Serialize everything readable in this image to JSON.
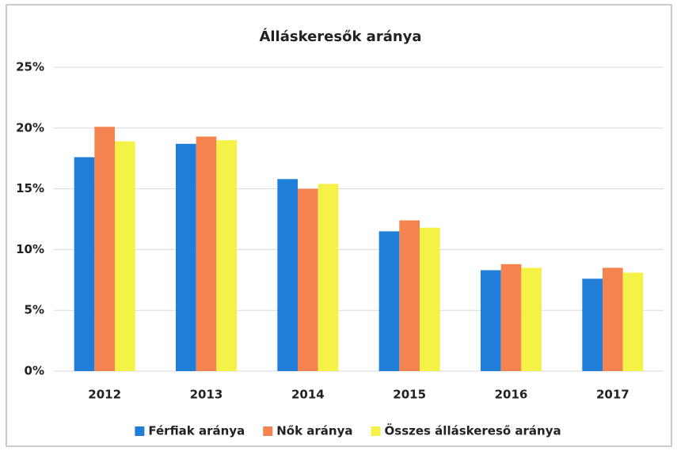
{
  "chart_data": {
    "type": "bar",
    "title": "Álláskeresők aránya",
    "categories": [
      "2012",
      "2013",
      "2014",
      "2015",
      "2016",
      "2017"
    ],
    "series": [
      {
        "name": "Férfiak aránya",
        "color": "#1f7fd8",
        "values": [
          17.6,
          18.7,
          15.8,
          11.5,
          8.3,
          7.6
        ]
      },
      {
        "name": "Nők aránya",
        "color": "#f4834f",
        "values": [
          20.1,
          19.3,
          15.0,
          12.4,
          8.8,
          8.5
        ]
      },
      {
        "name": "Összes álláskereső aránya",
        "color": "#f4f246",
        "values": [
          18.9,
          19.0,
          15.4,
          11.8,
          8.5,
          8.1
        ]
      }
    ],
    "ylim": [
      0,
      25
    ],
    "yticks": [
      {
        "value": 0,
        "label": "0%"
      },
      {
        "value": 5,
        "label": "5%"
      },
      {
        "value": 10,
        "label": "10%"
      },
      {
        "value": 15,
        "label": "15%"
      },
      {
        "value": 20,
        "label": "20%"
      },
      {
        "value": 25,
        "label": "25%"
      }
    ],
    "grid": true,
    "legend": "bottom"
  }
}
